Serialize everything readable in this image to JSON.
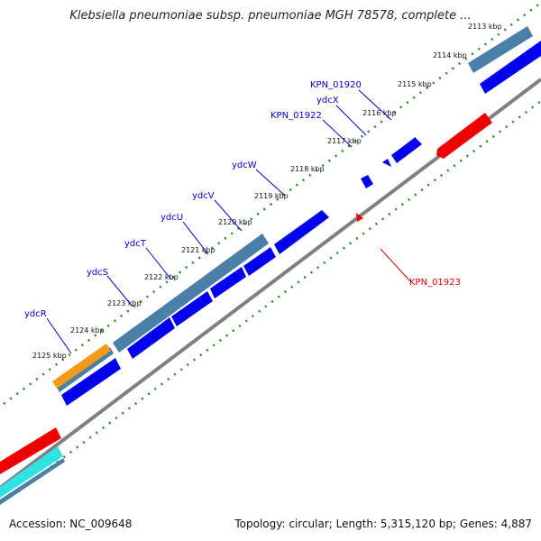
{
  "title": "Klebsiella pneumoniae subsp. pneumoniae MGH 78578, complete ...",
  "footer": {
    "accession": "Accession: NC_009648",
    "summary": "Topology: circular; Length: 5,315,120 bp; Genes: 4,887"
  },
  "colors": {
    "forward_cds": "#0000ee",
    "reverse_cds": "#ee0000",
    "blast_hit": "#4a7fa8",
    "orange_feature": "#f29a1a",
    "cyan_feature": "#2fe3e3",
    "gc_skew_ticks": "#228b22",
    "backbone": "#808080",
    "forward_label": "#0000cc",
    "reverse_label": "#dd0000"
  },
  "kbp_ticks": [
    "2113 kbp",
    "2114 kbp",
    "2115 kbp",
    "2116 kbp",
    "2117 kbp",
    "2118 kbp",
    "2119 kbp",
    "2120 kbp",
    "2121 kbp",
    "2122 kbp",
    "2123 kbp",
    "2124 kbp",
    "2125 kbp"
  ],
  "gene_labels": [
    {
      "text": "KPN_01920",
      "strand": "forward"
    },
    {
      "text": "ydcX",
      "strand": "forward"
    },
    {
      "text": "KPN_01922",
      "strand": "forward"
    },
    {
      "text": "ydcW",
      "strand": "forward"
    },
    {
      "text": "ydcV",
      "strand": "forward"
    },
    {
      "text": "ydcU",
      "strand": "forward"
    },
    {
      "text": "ydcT",
      "strand": "forward"
    },
    {
      "text": "ydcS",
      "strand": "forward"
    },
    {
      "text": "ydcR",
      "strand": "forward"
    },
    {
      "text": "KPN_01923",
      "strand": "reverse"
    }
  ]
}
